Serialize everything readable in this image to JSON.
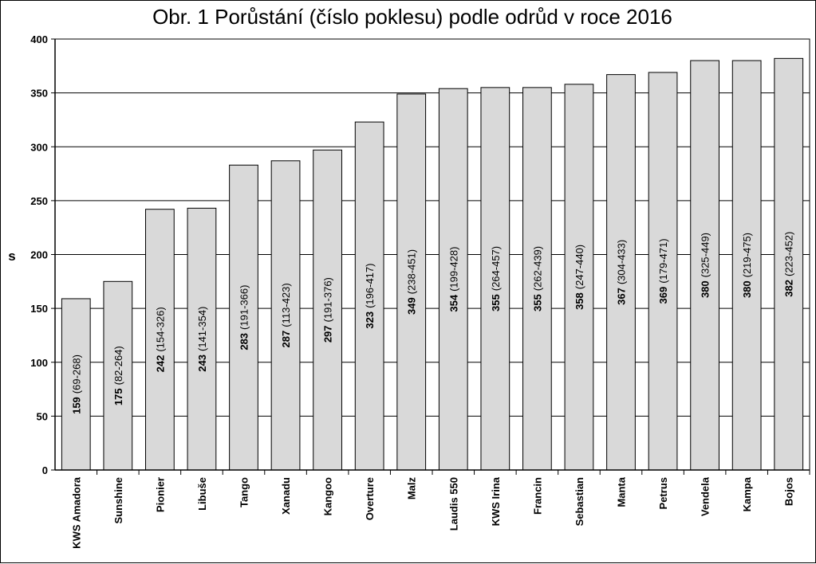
{
  "chart_data": {
    "type": "bar",
    "title": "Obr. 1 Porůstání (číslo poklesu) podle odrůd v roce 2016",
    "xlabel": "",
    "ylabel": "s",
    "ylim": [
      0,
      400
    ],
    "yticks": [
      0,
      50,
      100,
      150,
      200,
      250,
      300,
      350,
      400
    ],
    "grid": true,
    "legend": "none",
    "bar_color": "#d9d9d9",
    "categories": [
      "KWS Amadora",
      "Sunshine",
      "Pionier",
      "Libuše",
      "Tango",
      "Xanadu",
      "Kangoo",
      "Overture",
      "Malz",
      "Laudis 550",
      "KWS Irina",
      "Francin",
      "Sebastian",
      "Manta",
      "Petrus",
      "Vendela",
      "Kampa",
      "Bojos"
    ],
    "values": [
      159,
      175,
      242,
      243,
      283,
      287,
      297,
      323,
      349,
      354,
      355,
      355,
      358,
      367,
      369,
      380,
      380,
      382
    ],
    "ranges": [
      "(69-268)",
      "(82-264)",
      "(154-326)",
      "(141-354)",
      "(191-366)",
      "(113-423)",
      "(191-376)",
      "(196-417)",
      "(238-451)",
      "(199-428)",
      "(264-457)",
      "(262-439)",
      "(247-440)",
      "(304-433)",
      "(179-471)",
      "(325-449)",
      "(219-475)",
      "(223-452)"
    ]
  }
}
